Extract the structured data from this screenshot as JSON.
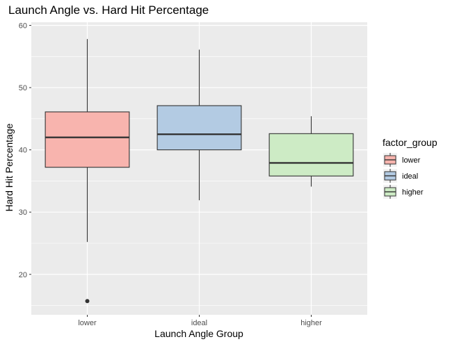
{
  "chart_data": {
    "type": "boxplot",
    "title": "Launch Angle vs. Hard Hit Percentage",
    "xlabel": "Launch Angle Group",
    "ylabel": "Hard Hit Percentage",
    "ylim": [
      13.5,
      60.5
    ],
    "y_ticks": [
      20,
      30,
      40,
      50,
      60
    ],
    "categories": [
      "lower",
      "ideal",
      "higher"
    ],
    "boxes": [
      {
        "category": "lower",
        "whisker_low": 25.2,
        "q1": 37.2,
        "median": 42.0,
        "q3": 46.1,
        "whisker_high": 57.8,
        "outliers": [
          15.7
        ],
        "color": "#f8b4ae"
      },
      {
        "category": "ideal",
        "whisker_low": 31.9,
        "q1": 40.0,
        "median": 42.5,
        "q3": 47.1,
        "whisker_high": 56.1,
        "outliers": [],
        "color": "#b3cbe3"
      },
      {
        "category": "higher",
        "whisker_low": 34.1,
        "q1": 35.8,
        "median": 37.9,
        "q3": 42.6,
        "whisker_high": 45.4,
        "outliers": [],
        "color": "#cdebc5"
      }
    ],
    "legend": {
      "title": "factor_group",
      "position": "right",
      "items": [
        "lower",
        "ideal",
        "higher"
      ]
    },
    "grid": true,
    "panel_background": "#ebebeb",
    "grid_color": "#ffffff",
    "box_border_color": "#333333"
  }
}
